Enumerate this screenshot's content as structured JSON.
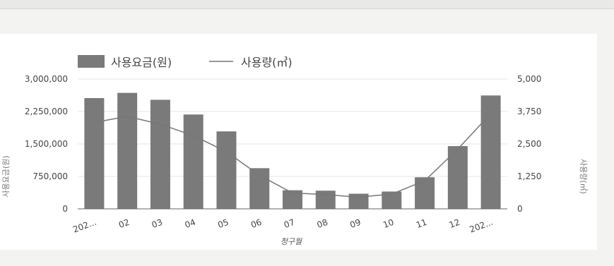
{
  "chart_data": {
    "type": "bar",
    "categories": [
      "202...",
      "02",
      "03",
      "04",
      "05",
      "06",
      "07",
      "08",
      "09",
      "10",
      "11",
      "12",
      "202..."
    ],
    "series": [
      {
        "name": "사용요금(원)",
        "type": "bar",
        "axis": "left",
        "color": "#7a7a7a",
        "values": [
          2560000,
          2680000,
          2520000,
          2180000,
          1790000,
          940000,
          430000,
          420000,
          350000,
          400000,
          730000,
          1450000,
          2620000
        ]
      },
      {
        "name": "사용량(㎥)",
        "type": "line",
        "axis": "right",
        "color": "#777777",
        "values": [
          3330,
          3560,
          3260,
          2820,
          2200,
          1290,
          610,
          550,
          450,
          570,
          1080,
          2300,
          3670
        ]
      }
    ],
    "xlabel": "청구월",
    "ylabel": "사용요금(원)",
    "y2label": "사용량(㎥)",
    "ylim": [
      0,
      3000000
    ],
    "y2lim": [
      0,
      5000
    ],
    "yticks": [
      "0",
      "750,000",
      "1,500,000",
      "2,250,000",
      "3,000,000"
    ],
    "y2ticks": [
      "0",
      "1,250",
      "2,500",
      "3,750",
      "5,000"
    ],
    "grid": true,
    "legend": "top-left"
  }
}
